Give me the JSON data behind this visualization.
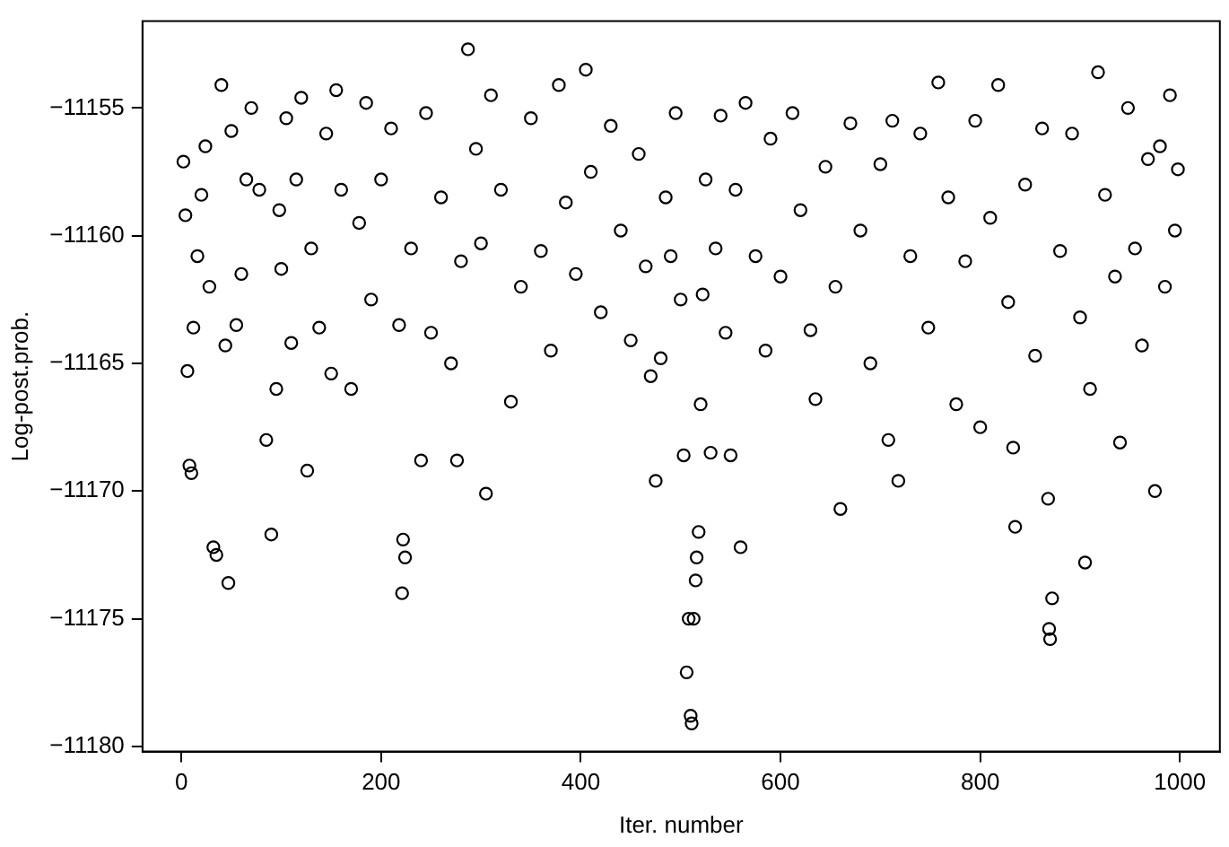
{
  "chart_data": {
    "type": "scatter",
    "xlabel": "Iter. number",
    "ylabel": "Log-post.prob.",
    "xlim": [
      -39,
      1040
    ],
    "ylim": [
      -11180.2,
      -11151.6
    ],
    "xticks": [
      0,
      200,
      400,
      600,
      800,
      1000
    ],
    "yticks": [
      -11180,
      -11175,
      -11170,
      -11165,
      -11160,
      -11155
    ],
    "grid": false,
    "legend": false,
    "marker": "circle",
    "series": [
      {
        "color": "#000000",
        "x": [
          2,
          4,
          6,
          8,
          10,
          12,
          16,
          20,
          24,
          28,
          32,
          35,
          40,
          44,
          47,
          50,
          55,
          60,
          65,
          70,
          78,
          85,
          90,
          95,
          98,
          100,
          105,
          110,
          115,
          120,
          126,
          130,
          138,
          145,
          150,
          155,
          160,
          170,
          178,
          185,
          190,
          200,
          210,
          218,
          221,
          222,
          224,
          230,
          240,
          245,
          250,
          260,
          270,
          276,
          280,
          287,
          295,
          300,
          305,
          310,
          320,
          330,
          340,
          350,
          360,
          370,
          378,
          385,
          395,
          405,
          410,
          420,
          430,
          440,
          450,
          458,
          465,
          470,
          475,
          480,
          485,
          490,
          495,
          500,
          503,
          506,
          508,
          510,
          511,
          513,
          515,
          516,
          518,
          520,
          522,
          525,
          530,
          535,
          540,
          545,
          550,
          555,
          560,
          565,
          575,
          585,
          590,
          600,
          612,
          620,
          630,
          635,
          645,
          655,
          660,
          670,
          680,
          690,
          700,
          708,
          712,
          718,
          730,
          740,
          748,
          758,
          768,
          776,
          785,
          795,
          800,
          810,
          818,
          828,
          833,
          835,
          845,
          855,
          862,
          868,
          869,
          870,
          872,
          880,
          892,
          900,
          905,
          910,
          918,
          925,
          935,
          940,
          948,
          955,
          962,
          968,
          975,
          980,
          985,
          990,
          995,
          998
        ],
        "values": [
          -11157.1,
          -11159.2,
          -11165.3,
          -11169.0,
          -11169.3,
          -11163.6,
          -11160.8,
          -11158.4,
          -11156.5,
          -11162.0,
          -11172.2,
          -11172.5,
          -11154.1,
          -11164.3,
          -11173.6,
          -11155.9,
          -11163.5,
          -11161.5,
          -11157.8,
          -11155.0,
          -11158.2,
          -11168.0,
          -11171.7,
          -11166.0,
          -11159.0,
          -11161.3,
          -11155.4,
          -11164.2,
          -11157.8,
          -11154.6,
          -11169.2,
          -11160.5,
          -11163.6,
          -11156.0,
          -11165.4,
          -11154.3,
          -11158.2,
          -11166.0,
          -11159.5,
          -11154.8,
          -11162.5,
          -11157.8,
          -11155.8,
          -11163.5,
          -11174.0,
          -11171.9,
          -11172.6,
          -11160.5,
          -11168.8,
          -11155.2,
          -11163.8,
          -11158.5,
          -11165.0,
          -11168.8,
          -11161.0,
          -11152.7,
          -11156.6,
          -11160.3,
          -11170.1,
          -11154.5,
          -11158.2,
          -11166.5,
          -11162.0,
          -11155.4,
          -11160.6,
          -11164.5,
          -11154.1,
          -11158.7,
          -11161.5,
          -11153.5,
          -11157.5,
          -11163.0,
          -11155.7,
          -11159.8,
          -11164.1,
          -11156.8,
          -11161.2,
          -11165.5,
          -11169.6,
          -11164.8,
          -11158.5,
          -11160.8,
          -11155.2,
          -11162.5,
          -11168.6,
          -11177.1,
          -11175.0,
          -11178.8,
          -11179.1,
          -11175.0,
          -11173.5,
          -11172.6,
          -11171.6,
          -11166.6,
          -11162.3,
          -11157.8,
          -11168.5,
          -11160.5,
          -11155.3,
          -11163.8,
          -11168.6,
          -11158.2,
          -11172.2,
          -11154.8,
          -11160.8,
          -11164.5,
          -11156.2,
          -11161.6,
          -11155.2,
          -11159.0,
          -11163.7,
          -11166.4,
          -11157.3,
          -11162.0,
          -11170.7,
          -11155.6,
          -11159.8,
          -11165.0,
          -11157.2,
          -11168.0,
          -11155.5,
          -11169.6,
          -11160.8,
          -11156.0,
          -11163.6,
          -11154.0,
          -11158.5,
          -11166.6,
          -11161.0,
          -11155.5,
          -11167.5,
          -11159.3,
          -11154.1,
          -11162.6,
          -11168.3,
          -11171.4,
          -11158.0,
          -11164.7,
          -11155.8,
          -11170.3,
          -11175.4,
          -11175.8,
          -11174.2,
          -11160.6,
          -11156.0,
          -11163.2,
          -11172.8,
          -11166.0,
          -11153.6,
          -11158.4,
          -11161.6,
          -11168.1,
          -11155.0,
          -11160.5,
          -11164.3,
          -11157.0,
          -11170.0,
          -11156.5,
          -11162.0,
          -11154.5,
          -11159.8,
          -11157.4
        ]
      }
    ]
  }
}
